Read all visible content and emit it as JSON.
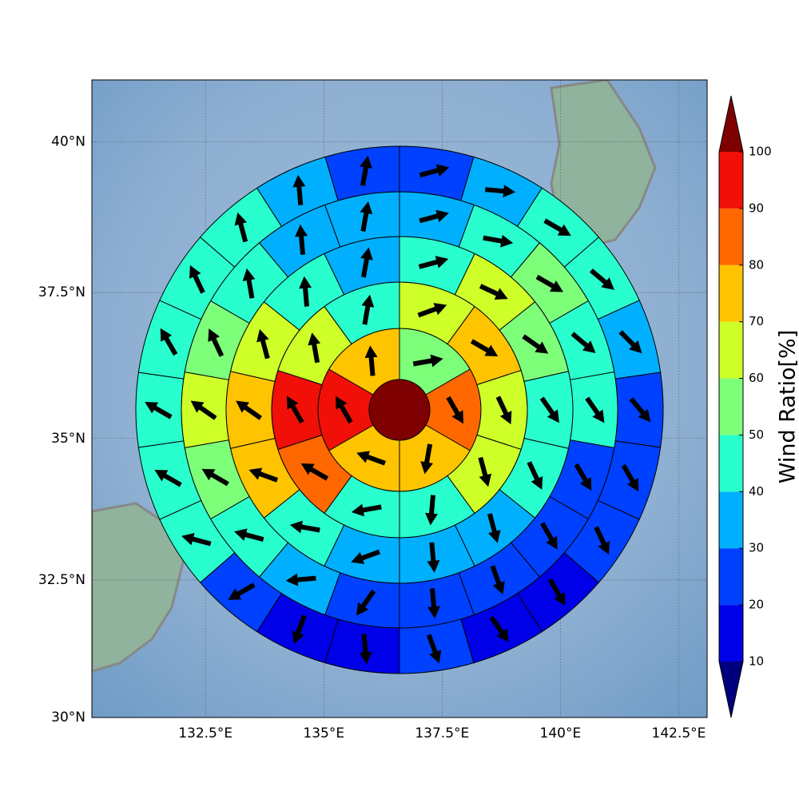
{
  "chart_data": {
    "type": "map",
    "xlim": [
      130.1,
      143.1
    ],
    "ylim": [
      30,
      41
    ],
    "xticks": [
      {
        "value": 132.5,
        "label": "132.5°E"
      },
      {
        "value": 135,
        "label": "135°E"
      },
      {
        "value": 137.5,
        "label": "137.5°E"
      },
      {
        "value": 140,
        "label": "140°E"
      },
      {
        "value": 142.5,
        "label": "142.5°E"
      }
    ],
    "yticks": [
      {
        "value": 30,
        "label": "30°N"
      },
      {
        "value": 32.5,
        "label": "32.5°N"
      },
      {
        "value": 35,
        "label": "35°N"
      },
      {
        "value": 37.5,
        "label": "37.5°N"
      },
      {
        "value": 40,
        "label": "40°N"
      }
    ],
    "grid": true,
    "colorbar": {
      "label": "Wind Ratio[%]",
      "levels": [
        10,
        20,
        30,
        40,
        50,
        60,
        70,
        80,
        90,
        100
      ],
      "colors": [
        "#00007f",
        "#0000e8",
        "#0040ff",
        "#00b0ff",
        "#29ffce",
        "#7dff7a",
        "#ceff29",
        "#ffc400",
        "#ff6800",
        "#f01008",
        "#7f0000"
      ]
    },
    "center_value": 105,
    "rings": [
      {
        "values": [
          55,
          85,
          75,
          75,
          95,
          75
        ],
        "directions": [
          80,
          150,
          190,
          290,
          330,
          355
        ]
      },
      {
        "values": [
          65,
          75,
          65,
          65,
          45,
          45,
          85,
          95,
          65,
          45
        ],
        "directions": [
          70,
          120,
          155,
          165,
          185,
          260,
          300,
          330,
          350,
          10
        ]
      },
      {
        "values": [
          45,
          65,
          55,
          45,
          45,
          35,
          35,
          35,
          45,
          75,
          75,
          65,
          45,
          35
        ],
        "directions": [
          75,
          115,
          125,
          145,
          155,
          165,
          175,
          250,
          280,
          290,
          305,
          345,
          355,
          10
        ]
      },
      {
        "values": [
          35,
          45,
          55,
          45,
          45,
          25,
          25,
          25,
          25,
          25,
          35,
          45,
          55,
          65,
          55,
          45,
          35,
          35
        ],
        "directions": [
          75,
          100,
          120,
          130,
          145,
          150,
          150,
          160,
          175,
          215,
          265,
          285,
          300,
          305,
          335,
          350,
          355,
          10
        ]
      },
      {
        "values": [
          25,
          35,
          45,
          45,
          35,
          25,
          25,
          25,
          15,
          15,
          25,
          15,
          15,
          25,
          45,
          45,
          45,
          45,
          45,
          45,
          35,
          25
        ],
        "directions": [
          75,
          95,
          120,
          130,
          135,
          140,
          150,
          155,
          150,
          145,
          160,
          175,
          200,
          240,
          285,
          300,
          300,
          330,
          335,
          345,
          355,
          10
        ]
      }
    ]
  }
}
